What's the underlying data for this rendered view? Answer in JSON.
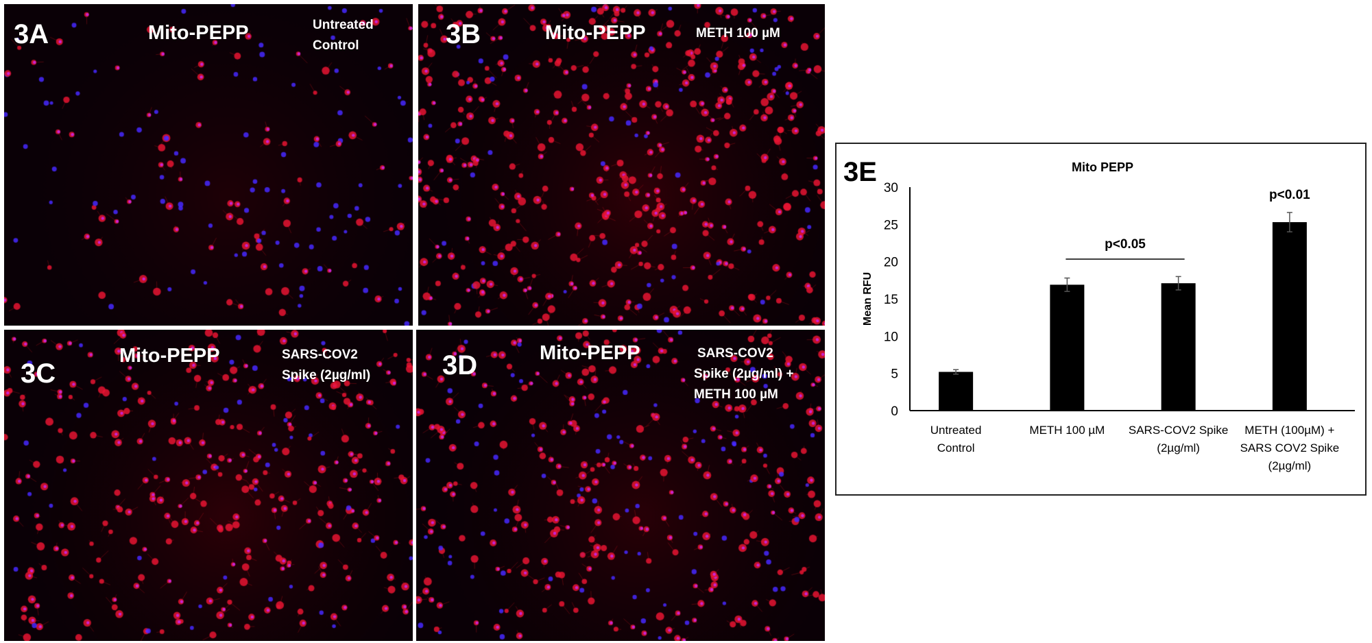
{
  "panels": [
    {
      "id": "3A",
      "stain": "Mito-PEPP",
      "condition_lines": [
        "Untreated",
        "Control"
      ]
    },
    {
      "id": "3B",
      "stain": "Mito-PEPP",
      "condition_lines": [
        "METH 100 µM"
      ]
    },
    {
      "id": "3C",
      "stain": "Mito-PEPP",
      "condition_lines": [
        "SARS-COV2",
        "Spike (2µg/ml)"
      ]
    },
    {
      "id": "3D",
      "stain": "Mito-PEPP",
      "condition_lines": [
        "SARS-COV2",
        "Spike (2µg/ml) +",
        "METH 100 µM"
      ]
    }
  ],
  "colors": {
    "nuclei": "#3a2cff",
    "mito_stain": "#ff1a2a",
    "bars": "#000000",
    "error_bars": "#555555"
  },
  "chart_data": {
    "type": "bar",
    "panel_label": "3E",
    "title": "Mito PEPP",
    "xlabel": "",
    "ylabel": "Mean RFU",
    "ylim": [
      0,
      30
    ],
    "yticks": [
      0,
      5,
      10,
      15,
      20,
      25,
      30
    ],
    "grid": false,
    "categories": [
      [
        "Untreated",
        "Control"
      ],
      [
        "METH 100 µM"
      ],
      [
        "SARS-COV2 Spike",
        "(2µg/ml)"
      ],
      [
        "METH (100µM) +",
        "SARS COV2 Spike",
        "(2µg/ml)"
      ]
    ],
    "values": [
      5.2,
      16.9,
      17.1,
      25.3
    ],
    "errors": [
      0.3,
      0.9,
      0.9,
      1.3
    ],
    "annotations": [
      {
        "text": "p<0.05",
        "bracket_from": 1,
        "bracket_to": 2
      },
      {
        "text": "p<0.01",
        "over": 3
      }
    ]
  }
}
